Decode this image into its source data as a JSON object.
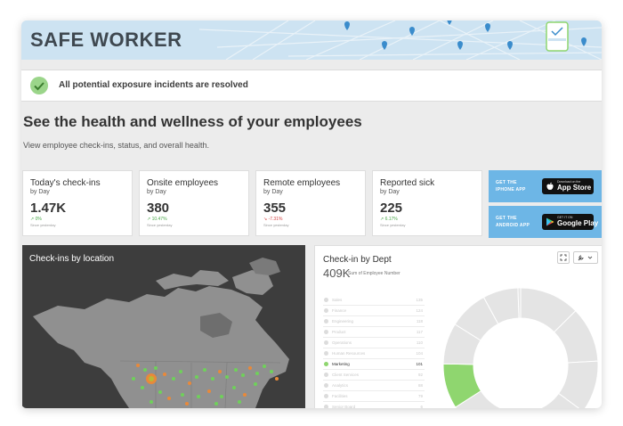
{
  "app": {
    "title": "SAFE WORKER"
  },
  "banner": {
    "message": "All potential exposure incidents are resolved"
  },
  "intro": {
    "headline": "See the health and wellness of your employees",
    "subline": "View employee check-ins, status, and overall health."
  },
  "metrics": [
    {
      "title": "Today's check-ins",
      "period": "by Day",
      "value": "1.47K",
      "delta": "↗ 0%",
      "trend": "up",
      "note": "Since yesterday"
    },
    {
      "title": "Onsite employees",
      "period": "by Day",
      "value": "380",
      "delta": "↗ 10.47%",
      "trend": "up",
      "note": "Since yesterday"
    },
    {
      "title": "Remote employees",
      "period": "by Day",
      "value": "355",
      "delta": "↘ -7.31%",
      "trend": "down",
      "note": "Since yesterday"
    },
    {
      "title": "Reported sick",
      "period": "by Day",
      "value": "225",
      "delta": "↗ 6.17%",
      "trend": "up",
      "note": "Since yesterday"
    }
  ],
  "stores": {
    "iphone": {
      "label_line1": "GET THE",
      "label_line2": "IPHONE APP",
      "badge_small": "Download on the",
      "badge_big": "App Store"
    },
    "android": {
      "label_line1": "GET THE",
      "label_line2": "ANDROID APP",
      "badge_small": "GET IT ON",
      "badge_big": "Google Play"
    }
  },
  "map_panel": {
    "title": "Check-ins by location"
  },
  "dept_panel": {
    "title": "Check-in by Dept",
    "total": "409K",
    "total_label": "Sum of Employee Number",
    "rows": [
      {
        "label": "Sales",
        "value": "135"
      },
      {
        "label": "Finance",
        "value": "124"
      },
      {
        "label": "Engineering",
        "value": "118"
      },
      {
        "label": "Product",
        "value": "117"
      },
      {
        "label": "Operations",
        "value": "110"
      },
      {
        "label": "Human Resources",
        "value": "104"
      },
      {
        "label": "Marketing",
        "value": "101",
        "active": true
      },
      {
        "label": "Client Services",
        "value": "92"
      },
      {
        "label": "Analytics",
        "value": "88"
      },
      {
        "label": "Facilities",
        "value": "79"
      },
      {
        "label": "Senior Board",
        "value": "6"
      }
    ]
  },
  "colors": {
    "header_bg": "#cde3f2",
    "accent_green": "#8fd66f",
    "map_bg": "#3d3d3d",
    "store_blue": "#6db6e6",
    "pin_blue": "#3a8ccc",
    "positive": "#4aa84a",
    "negative": "#d43f3f"
  },
  "icons": {
    "banner": "checkmark-icon",
    "header": "map-pin-icon",
    "fullscreen": "expand-icon",
    "tools": "wrench-icon",
    "dropdown": "chevron-down-icon"
  }
}
